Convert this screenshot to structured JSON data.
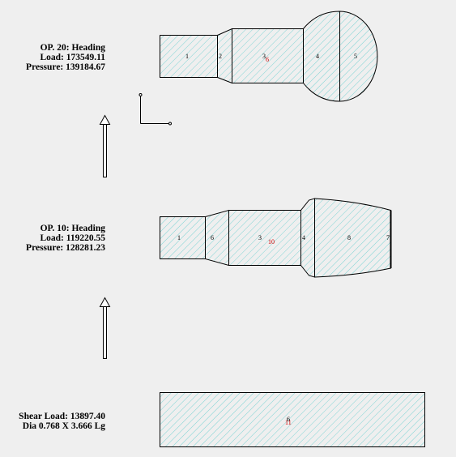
{
  "colors": {
    "background": "#efefef",
    "hatch": "#7fd4d4",
    "outline": "#000000",
    "marker_red": "#cc0000"
  },
  "op20": {
    "title": "OP. 20: Heading",
    "load": "Load: 173549.11",
    "pressure": "Pressure: 139184.67",
    "segments": [
      "1",
      "2",
      "3",
      "4",
      "5"
    ],
    "marker": "6"
  },
  "op10": {
    "title": "OP. 10: Heading",
    "load": "Load: 119220.55",
    "pressure": "Pressure: 128281.23",
    "segments": [
      "1",
      "6",
      "3",
      "4",
      "8",
      "7"
    ],
    "marker": "10"
  },
  "blank": {
    "shear_load": "Shear Load: 13897.40",
    "dimensions": "Dia 0.768 X 3.666 Lg",
    "segment": "6",
    "marker": "11"
  },
  "icons": [
    "up-arrow-icon",
    "up-arrow-icon",
    "axis-triad-icon"
  ]
}
